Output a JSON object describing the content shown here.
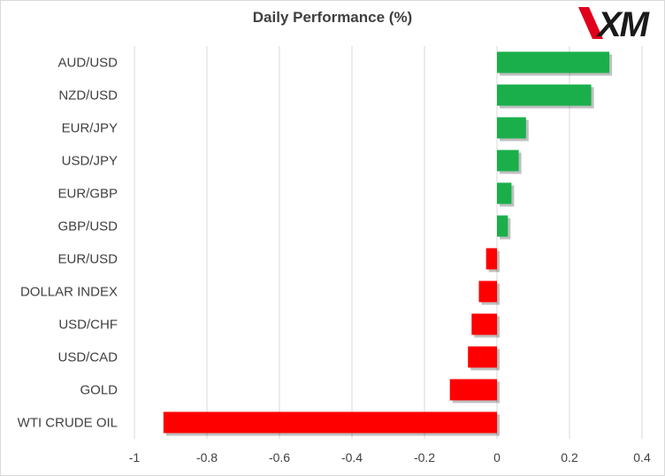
{
  "header": {
    "title": "Daily Performance (%)",
    "logo_text": "XM"
  },
  "colors": {
    "positive": "#1aaf4b",
    "negative": "#ff0000",
    "grid": "#d9d9d9",
    "text": "#404040",
    "logo_accent": "#e0001b"
  },
  "chart_data": {
    "type": "bar",
    "orientation": "horizontal",
    "title": "Daily Performance (%)",
    "categories": [
      "AUD/USD",
      "NZD/USD",
      "EUR/JPY",
      "USD/JPY",
      "EUR/GBP",
      "GBP/USD",
      "EUR/USD",
      "DOLLAR INDEX",
      "USD/CHF",
      "USD/CAD",
      "GOLD",
      "WTI CRUDE OIL"
    ],
    "values": [
      0.31,
      0.26,
      0.08,
      0.06,
      0.04,
      0.03,
      -0.03,
      -0.05,
      -0.07,
      -0.08,
      -0.13,
      -0.92
    ],
    "xlim": [
      -1,
      0.4
    ],
    "xticks": [
      -1,
      -0.8,
      -0.6,
      -0.4,
      -0.2,
      0,
      0.2,
      0.4
    ],
    "xtick_labels": [
      "-1",
      "-0.8",
      "-0.6",
      "-0.4",
      "-0.2",
      "0",
      "0.2",
      "0.4"
    ],
    "grid": "vertical",
    "legend": "none"
  }
}
